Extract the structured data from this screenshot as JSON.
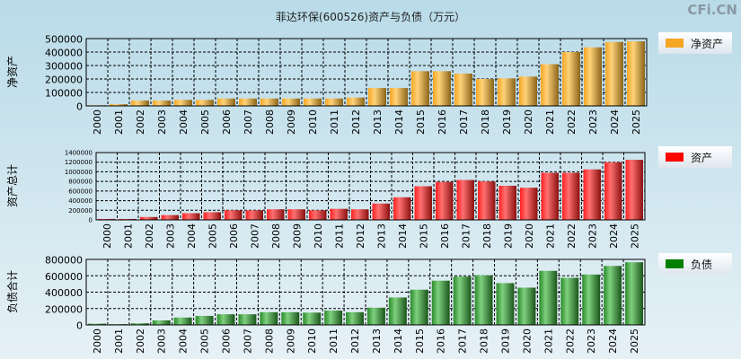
{
  "title": "菲达环保(600526)资产与负债（万元）",
  "brand": "CFi.CN",
  "chart_data": [
    {
      "type": "bar",
      "ylabel": "净资产",
      "legend": "净资产",
      "color": "#f5a623",
      "ylim": [
        0,
        500000
      ],
      "yticks": [
        "0",
        "100000",
        "200000",
        "300000",
        "400000",
        "500000"
      ],
      "categories": [
        "2000",
        "2001",
        "2002",
        "2003",
        "2004",
        "2005",
        "2006",
        "2007",
        "2008",
        "2009",
        "2010",
        "2011",
        "2012",
        "2013",
        "2014",
        "2015",
        "2016",
        "2017",
        "2018",
        "2019",
        "2020",
        "2021",
        "2022",
        "2023",
        "2024",
        "2025"
      ],
      "values": [
        5000,
        13000,
        40000,
        40000,
        45000,
        45000,
        55000,
        55000,
        55000,
        55000,
        55000,
        55000,
        62000,
        133000,
        133000,
        258000,
        258000,
        240000,
        200000,
        205000,
        218000,
        310000,
        400000,
        435000,
        475000,
        480000
      ]
    },
    {
      "type": "bar",
      "ylabel": "资产总计",
      "legend": "资产",
      "color": "#ff0000",
      "ylim": [
        0,
        1400000
      ],
      "yticks": [
        "0",
        "200000",
        "400000",
        "600000",
        "800000",
        "1000000",
        "1200000",
        "1400000"
      ],
      "categories": [
        "2000",
        "2001",
        "2002",
        "2003",
        "2004",
        "2005",
        "2006",
        "2007",
        "2008",
        "2009",
        "2010",
        "2011",
        "2012",
        "2013",
        "2014",
        "2015",
        "2016",
        "2017",
        "2018",
        "2019",
        "2020",
        "2021",
        "2022",
        "2023",
        "2024",
        "2025"
      ],
      "values": [
        20000,
        20000,
        60000,
        100000,
        140000,
        160000,
        200000,
        200000,
        220000,
        220000,
        200000,
        230000,
        220000,
        340000,
        470000,
        700000,
        790000,
        830000,
        800000,
        710000,
        670000,
        980000,
        980000,
        1050000,
        1200000,
        1250000
      ]
    },
    {
      "type": "bar",
      "ylabel": "负债合计",
      "legend": "负债",
      "color": "#008000",
      "ylim": [
        0,
        800000
      ],
      "yticks": [
        "0",
        "200000",
        "400000",
        "600000",
        "800000"
      ],
      "categories": [
        "2000",
        "2001",
        "2002",
        "2003",
        "2004",
        "2005",
        "2006",
        "2007",
        "2008",
        "2009",
        "2010",
        "2011",
        "2012",
        "2013",
        "2014",
        "2015",
        "2016",
        "2017",
        "2018",
        "2019",
        "2020",
        "2021",
        "2022",
        "2023",
        "2024",
        "2025"
      ],
      "values": [
        15000,
        10000,
        20000,
        55000,
        90000,
        110000,
        130000,
        130000,
        155000,
        155000,
        150000,
        175000,
        155000,
        210000,
        335000,
        430000,
        540000,
        590000,
        605000,
        510000,
        455000,
        660000,
        575000,
        615000,
        720000,
        765000
      ]
    }
  ]
}
